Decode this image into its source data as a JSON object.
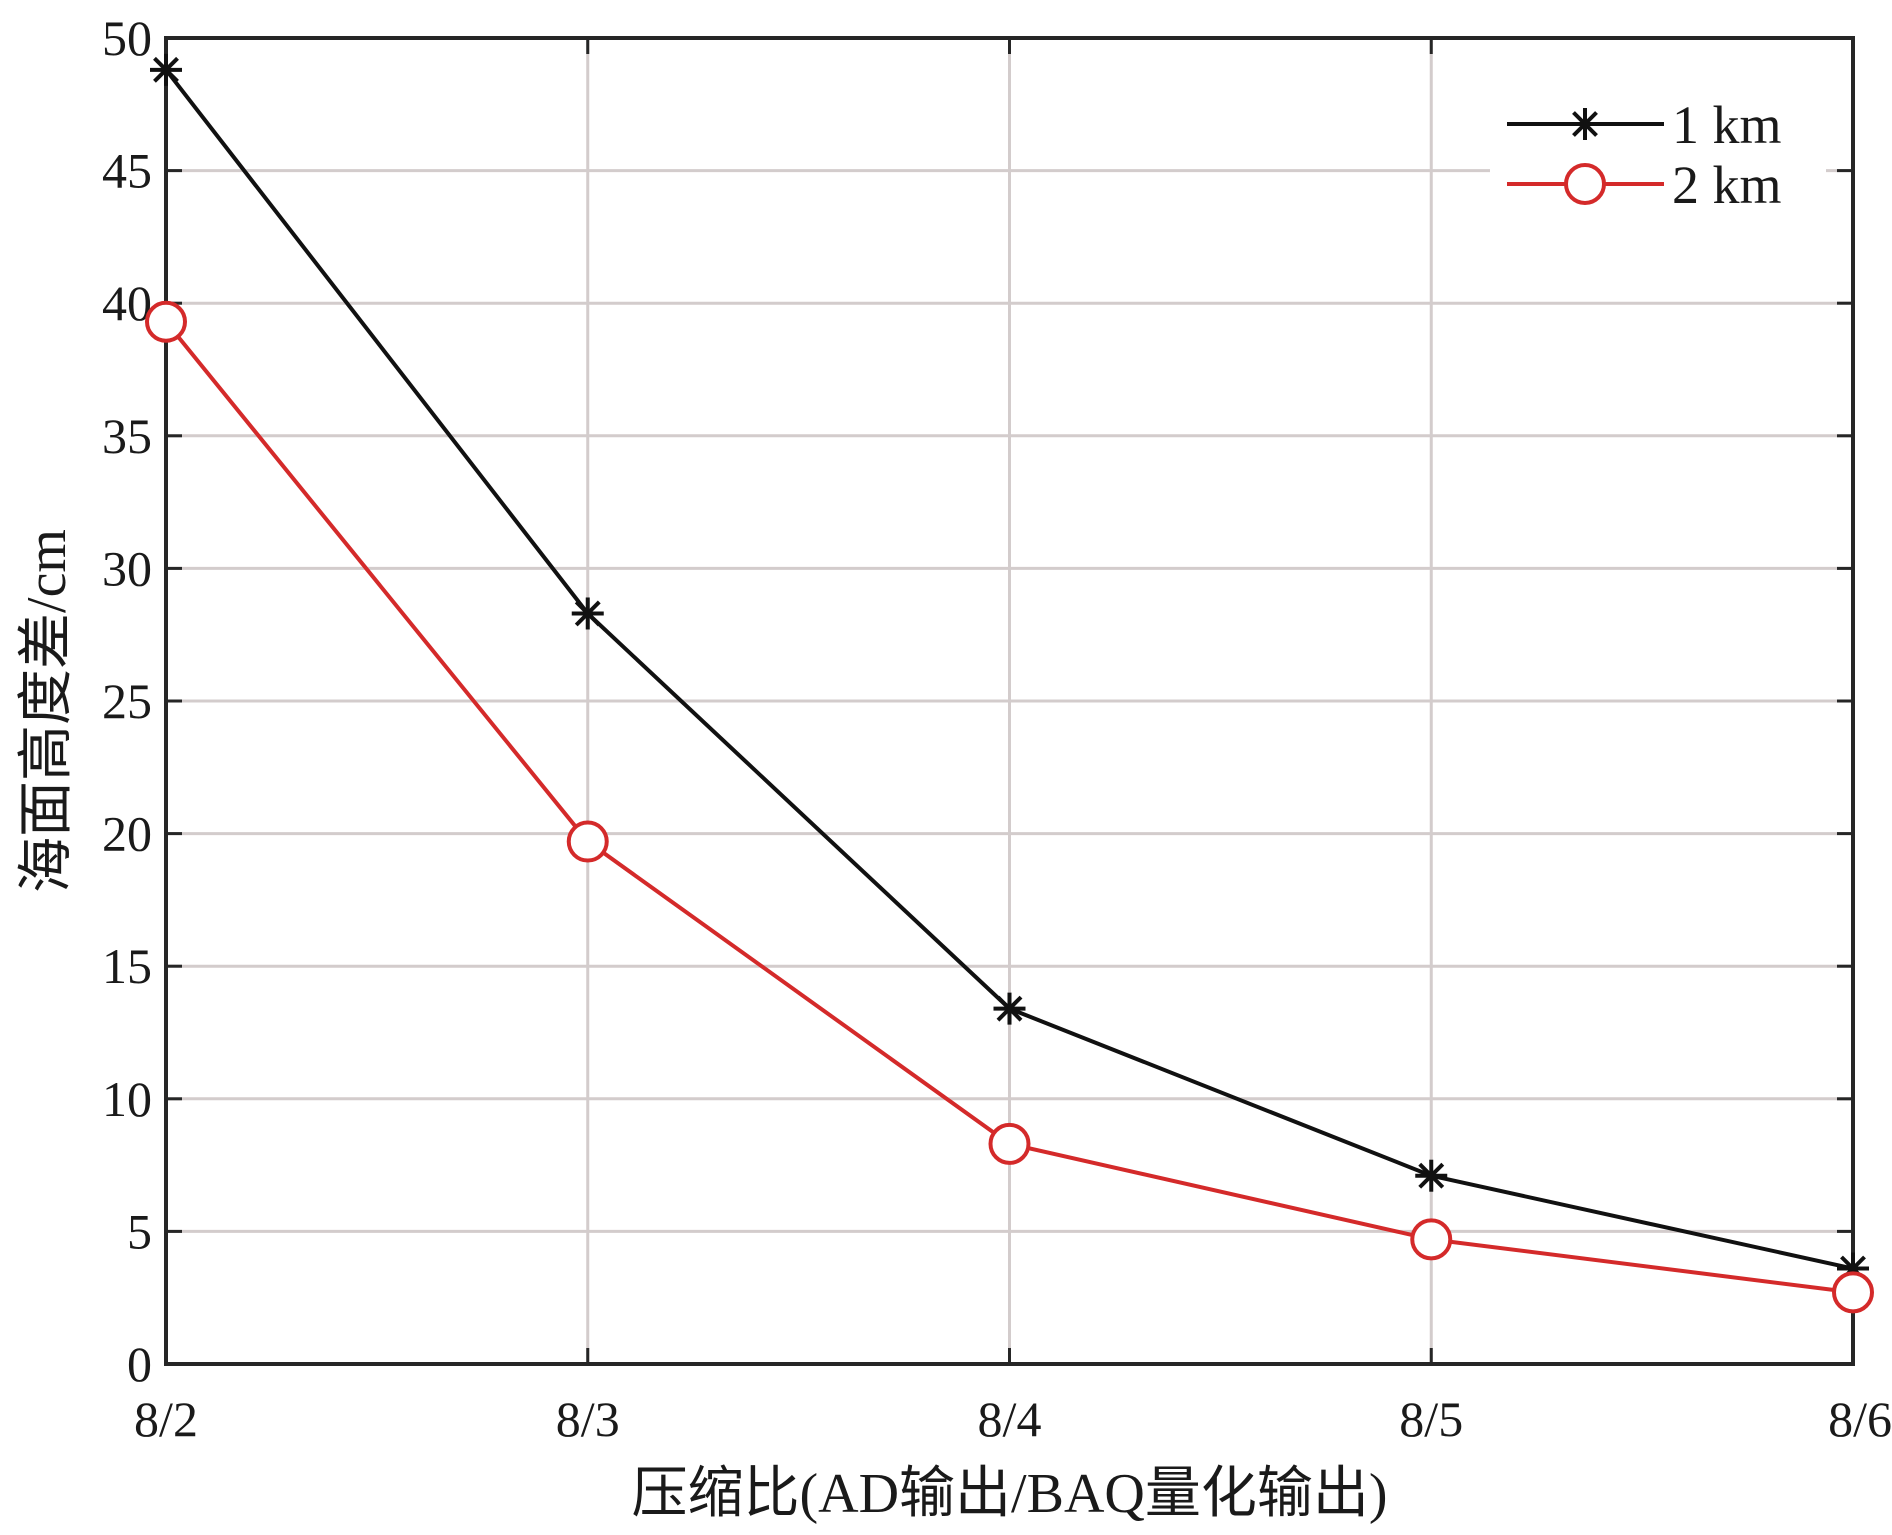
{
  "chart_data": {
    "type": "line",
    "title": "",
    "xlabel": "压缩比(AD输出/BAQ量化输出)",
    "ylabel": "海面高度差/cm",
    "categories": [
      "8/2",
      "8/3",
      "8/4",
      "8/5",
      "8/6"
    ],
    "ylim": [
      0,
      50
    ],
    "yticks": [
      0,
      5,
      10,
      15,
      20,
      25,
      30,
      35,
      40,
      45,
      50
    ],
    "grid": true,
    "legend_position": "top-right",
    "series": [
      {
        "name": "1 km",
        "values": [
          48.8,
          28.3,
          13.4,
          7.1,
          3.6
        ],
        "color": "#111111",
        "marker": "asterisk"
      },
      {
        "name": "2 km",
        "values": [
          39.3,
          19.7,
          8.3,
          4.7,
          2.7
        ],
        "color": "#d42a2a",
        "marker": "circle"
      }
    ]
  }
}
